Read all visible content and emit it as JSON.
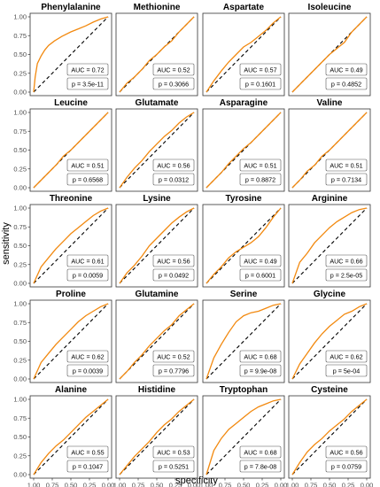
{
  "figure": {
    "ylabel": "sensitivity",
    "xlabel": "specificity",
    "y_ticks": [
      "0.00",
      "0.25",
      "0.50",
      "0.75",
      "1.00"
    ],
    "x_ticks": [
      "1.00",
      "0.75",
      "0.50",
      "0.25",
      "0.00"
    ],
    "colors": {
      "roc": "#F2890F",
      "diagonal": "#000000",
      "frame": "#333333",
      "legend_border": "#555555"
    }
  },
  "chart_data": [
    {
      "type": "line",
      "title": "Phenylalanine",
      "auc_text": "AUC = 0.72",
      "p_text": "p = 3.5e-11",
      "auc": 0.72,
      "x": [
        1.0,
        0.98,
        0.95,
        0.9,
        0.85,
        0.8,
        0.72,
        0.62,
        0.5,
        0.4,
        0.3,
        0.2,
        0.1,
        0.0
      ],
      "y": [
        0.0,
        0.2,
        0.38,
        0.48,
        0.56,
        0.62,
        0.68,
        0.74,
        0.8,
        0.84,
        0.88,
        0.93,
        0.97,
        1.0
      ],
      "xlim": [
        1,
        0
      ],
      "ylim": [
        0,
        1
      ]
    },
    {
      "type": "line",
      "title": "Methionine",
      "auc_text": "AUC = 0.52",
      "p_text": "p = 0.3066",
      "auc": 0.52,
      "x": [
        1.0,
        0.9,
        0.8,
        0.7,
        0.6,
        0.5,
        0.4,
        0.3,
        0.2,
        0.1,
        0.0
      ],
      "y": [
        0.0,
        0.12,
        0.2,
        0.3,
        0.42,
        0.5,
        0.6,
        0.68,
        0.8,
        0.9,
        1.0
      ],
      "xlim": [
        1,
        0
      ],
      "ylim": [
        0,
        1
      ]
    },
    {
      "type": "line",
      "title": "Aspartate",
      "auc_text": "AUC = 0.57",
      "p_text": "p = 0.1601",
      "auc": 0.57,
      "x": [
        1.0,
        0.9,
        0.8,
        0.7,
        0.6,
        0.5,
        0.4,
        0.3,
        0.2,
        0.1,
        0.0
      ],
      "y": [
        0.0,
        0.15,
        0.28,
        0.4,
        0.5,
        0.6,
        0.66,
        0.74,
        0.82,
        0.92,
        1.0
      ],
      "xlim": [
        1,
        0
      ],
      "ylim": [
        0,
        1
      ]
    },
    {
      "type": "line",
      "title": "Isoleucine",
      "auc_text": "AUC = 0.49",
      "p_text": "p = 0.4852",
      "auc": 0.49,
      "x": [
        1.0,
        0.9,
        0.8,
        0.7,
        0.6,
        0.5,
        0.4,
        0.3,
        0.2,
        0.1,
        0.0
      ],
      "y": [
        0.0,
        0.1,
        0.2,
        0.3,
        0.4,
        0.5,
        0.58,
        0.66,
        0.8,
        0.9,
        1.0
      ],
      "xlim": [
        1,
        0
      ],
      "ylim": [
        0,
        1
      ]
    },
    {
      "type": "line",
      "title": "Leucine",
      "auc_text": "AUC = 0.51",
      "p_text": "p = 0.6568",
      "auc": 0.51,
      "x": [
        1.0,
        0.9,
        0.8,
        0.7,
        0.6,
        0.5,
        0.4,
        0.3,
        0.2,
        0.1,
        0.0
      ],
      "y": [
        0.0,
        0.1,
        0.2,
        0.3,
        0.42,
        0.5,
        0.6,
        0.7,
        0.8,
        0.9,
        1.0
      ],
      "xlim": [
        1,
        0
      ],
      "ylim": [
        0,
        1
      ]
    },
    {
      "type": "line",
      "title": "Glutamate",
      "auc_text": "AUC = 0.56",
      "p_text": "p = 0.0312",
      "auc": 0.56,
      "x": [
        1.0,
        0.9,
        0.8,
        0.7,
        0.6,
        0.5,
        0.4,
        0.3,
        0.2,
        0.1,
        0.0
      ],
      "y": [
        0.0,
        0.14,
        0.26,
        0.36,
        0.48,
        0.58,
        0.68,
        0.76,
        0.86,
        0.94,
        1.0
      ],
      "xlim": [
        1,
        0
      ],
      "ylim": [
        0,
        1
      ]
    },
    {
      "type": "line",
      "title": "Asparagine",
      "auc_text": "AUC = 0.51",
      "p_text": "p = 0.8872",
      "auc": 0.51,
      "x": [
        1.0,
        0.9,
        0.8,
        0.7,
        0.6,
        0.5,
        0.4,
        0.3,
        0.2,
        0.1,
        0.0
      ],
      "y": [
        0.0,
        0.1,
        0.2,
        0.32,
        0.42,
        0.52,
        0.6,
        0.7,
        0.8,
        0.9,
        1.0
      ],
      "xlim": [
        1,
        0
      ],
      "ylim": [
        0,
        1
      ]
    },
    {
      "type": "line",
      "title": "Valine",
      "auc_text": "AUC = 0.51",
      "p_text": "p = 0.7134",
      "auc": 0.51,
      "x": [
        1.0,
        0.9,
        0.8,
        0.7,
        0.6,
        0.5,
        0.4,
        0.3,
        0.2,
        0.1,
        0.0
      ],
      "y": [
        0.0,
        0.1,
        0.22,
        0.3,
        0.42,
        0.5,
        0.6,
        0.7,
        0.8,
        0.9,
        1.0
      ],
      "xlim": [
        1,
        0
      ],
      "ylim": [
        0,
        1
      ]
    },
    {
      "type": "line",
      "title": "Threonine",
      "auc_text": "AUC = 0.61",
      "p_text": "p = 0.0059",
      "auc": 0.61,
      "x": [
        1.0,
        0.9,
        0.8,
        0.7,
        0.6,
        0.5,
        0.4,
        0.3,
        0.2,
        0.1,
        0.0
      ],
      "y": [
        0.0,
        0.22,
        0.34,
        0.46,
        0.56,
        0.66,
        0.74,
        0.82,
        0.9,
        0.96,
        1.0
      ],
      "xlim": [
        1,
        0
      ],
      "ylim": [
        0,
        1
      ]
    },
    {
      "type": "line",
      "title": "Lysine",
      "auc_text": "AUC = 0.56",
      "p_text": "p = 0.0492",
      "auc": 0.56,
      "x": [
        1.0,
        0.9,
        0.8,
        0.7,
        0.6,
        0.5,
        0.4,
        0.3,
        0.2,
        0.1,
        0.0
      ],
      "y": [
        0.0,
        0.14,
        0.24,
        0.36,
        0.5,
        0.6,
        0.7,
        0.8,
        0.88,
        0.95,
        1.0
      ],
      "xlim": [
        1,
        0
      ],
      "ylim": [
        0,
        1
      ]
    },
    {
      "type": "line",
      "title": "Tyrosine",
      "auc_text": "AUC = 0.49",
      "p_text": "p = 0.6001",
      "auc": 0.49,
      "x": [
        1.0,
        0.9,
        0.8,
        0.7,
        0.6,
        0.5,
        0.4,
        0.3,
        0.2,
        0.1,
        0.0
      ],
      "y": [
        0.0,
        0.12,
        0.22,
        0.34,
        0.42,
        0.48,
        0.54,
        0.62,
        0.74,
        0.88,
        1.0
      ],
      "xlim": [
        1,
        0
      ],
      "ylim": [
        0,
        1
      ]
    },
    {
      "type": "line",
      "title": "Arginine",
      "auc_text": "AUC = 0.66",
      "p_text": "p = 2.5e-05",
      "auc": 0.66,
      "x": [
        1.0,
        0.9,
        0.8,
        0.7,
        0.6,
        0.5,
        0.4,
        0.3,
        0.2,
        0.1,
        0.0
      ],
      "y": [
        0.0,
        0.28,
        0.4,
        0.54,
        0.64,
        0.74,
        0.82,
        0.88,
        0.94,
        0.98,
        1.0
      ],
      "xlim": [
        1,
        0
      ],
      "ylim": [
        0,
        1
      ]
    },
    {
      "type": "line",
      "title": "Proline",
      "auc_text": "AUC = 0.62",
      "p_text": "p = 0.0039",
      "auc": 0.62,
      "x": [
        1.0,
        0.9,
        0.8,
        0.7,
        0.6,
        0.5,
        0.4,
        0.3,
        0.2,
        0.1,
        0.0
      ],
      "y": [
        0.0,
        0.22,
        0.34,
        0.46,
        0.56,
        0.66,
        0.76,
        0.84,
        0.9,
        0.96,
        1.0
      ],
      "xlim": [
        1,
        0
      ],
      "ylim": [
        0,
        1
      ]
    },
    {
      "type": "line",
      "title": "Glutamine",
      "auc_text": "AUC = 0.52",
      "p_text": "p = 0.7796",
      "auc": 0.52,
      "x": [
        1.0,
        0.9,
        0.8,
        0.7,
        0.6,
        0.5,
        0.4,
        0.3,
        0.2,
        0.1,
        0.0
      ],
      "y": [
        0.0,
        0.1,
        0.22,
        0.32,
        0.44,
        0.54,
        0.64,
        0.72,
        0.84,
        0.92,
        1.0
      ],
      "xlim": [
        1,
        0
      ],
      "ylim": [
        0,
        1
      ]
    },
    {
      "type": "line",
      "title": "Serine",
      "auc_text": "AUC = 0.68",
      "p_text": "p = 9.9e-08",
      "auc": 0.68,
      "x": [
        1.0,
        0.9,
        0.8,
        0.7,
        0.6,
        0.5,
        0.4,
        0.3,
        0.2,
        0.1,
        0.0
      ],
      "y": [
        0.0,
        0.28,
        0.46,
        0.62,
        0.76,
        0.84,
        0.88,
        0.9,
        0.94,
        0.98,
        1.0
      ],
      "xlim": [
        1,
        0
      ],
      "ylim": [
        0,
        1
      ]
    },
    {
      "type": "line",
      "title": "Glycine",
      "auc_text": "AUC = 0.62",
      "p_text": "p = 5e-04",
      "auc": 0.62,
      "x": [
        1.0,
        0.9,
        0.8,
        0.7,
        0.6,
        0.5,
        0.4,
        0.3,
        0.2,
        0.1,
        0.0
      ],
      "y": [
        0.0,
        0.2,
        0.34,
        0.48,
        0.6,
        0.7,
        0.78,
        0.86,
        0.9,
        0.96,
        1.0
      ],
      "xlim": [
        1,
        0
      ],
      "ylim": [
        0,
        1
      ]
    },
    {
      "type": "line",
      "title": "Alanine",
      "auc_text": "AUC = 0.55",
      "p_text": "p = 0.1047",
      "auc": 0.55,
      "x": [
        1.0,
        0.9,
        0.8,
        0.7,
        0.6,
        0.5,
        0.4,
        0.3,
        0.2,
        0.1,
        0.0
      ],
      "y": [
        0.0,
        0.16,
        0.28,
        0.38,
        0.46,
        0.56,
        0.66,
        0.76,
        0.84,
        0.92,
        1.0
      ],
      "xlim": [
        1,
        0
      ],
      "ylim": [
        0,
        1
      ]
    },
    {
      "type": "line",
      "title": "Histidine",
      "auc_text": "AUC = 0.53",
      "p_text": "p = 0.5251",
      "auc": 0.53,
      "x": [
        1.0,
        0.9,
        0.8,
        0.7,
        0.6,
        0.5,
        0.4,
        0.3,
        0.2,
        0.1,
        0.0
      ],
      "y": [
        0.0,
        0.12,
        0.24,
        0.34,
        0.44,
        0.56,
        0.66,
        0.74,
        0.84,
        0.92,
        1.0
      ],
      "xlim": [
        1,
        0
      ],
      "ylim": [
        0,
        1
      ]
    },
    {
      "type": "line",
      "title": "Tryptophan",
      "auc_text": "AUC = 0.68",
      "p_text": "p = 7.8e-08",
      "auc": 0.68,
      "x": [
        1.0,
        0.9,
        0.8,
        0.7,
        0.6,
        0.5,
        0.4,
        0.3,
        0.2,
        0.1,
        0.0
      ],
      "y": [
        0.0,
        0.32,
        0.48,
        0.6,
        0.68,
        0.76,
        0.84,
        0.9,
        0.94,
        0.98,
        1.0
      ],
      "xlim": [
        1,
        0
      ],
      "ylim": [
        0,
        1
      ]
    },
    {
      "type": "line",
      "title": "Cysteine",
      "auc_text": "AUC = 0.56",
      "p_text": "p = 0.0759",
      "auc": 0.56,
      "x": [
        1.0,
        0.9,
        0.8,
        0.7,
        0.6,
        0.5,
        0.4,
        0.3,
        0.2,
        0.1,
        0.0
      ],
      "y": [
        0.0,
        0.16,
        0.3,
        0.4,
        0.48,
        0.58,
        0.66,
        0.74,
        0.84,
        0.92,
        1.0
      ],
      "xlim": [
        1,
        0
      ],
      "ylim": [
        0,
        1
      ]
    }
  ]
}
